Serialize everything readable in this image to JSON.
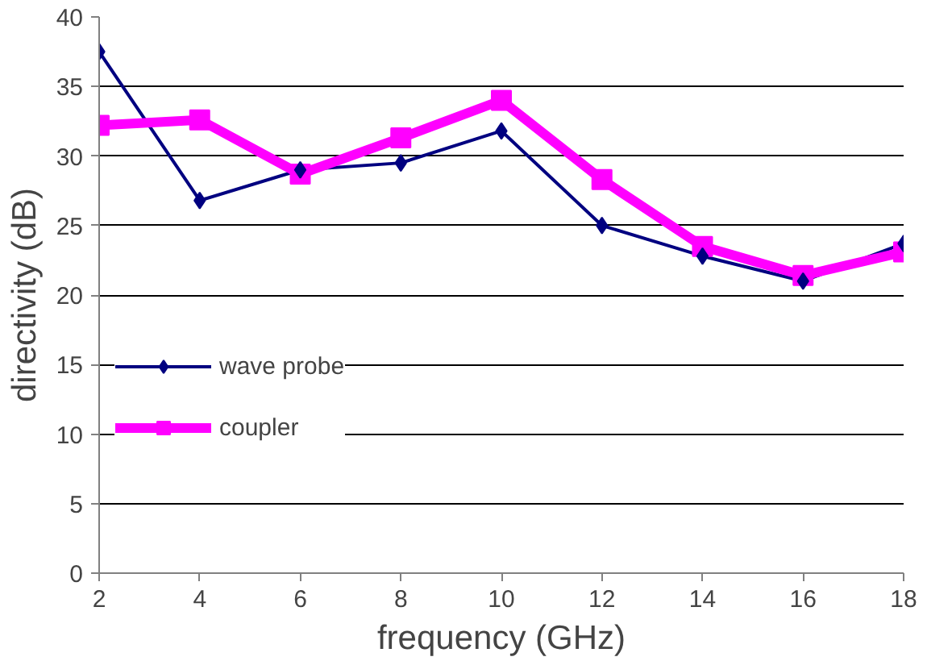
{
  "chart_data": {
    "type": "line",
    "xlabel": "frequency (GHz)",
    "ylabel": "directivity (dB)",
    "x": [
      2,
      4,
      6,
      8,
      10,
      12,
      14,
      16,
      18
    ],
    "xlim": [
      2,
      18
    ],
    "xticks": [
      2,
      4,
      6,
      8,
      10,
      12,
      14,
      16,
      18
    ],
    "ylim": [
      0,
      40
    ],
    "yticks": [
      0,
      5,
      10,
      15,
      20,
      25,
      30,
      35,
      40
    ],
    "grid": "y",
    "legend": "left",
    "line_style": "solid",
    "series": [
      {
        "name": "wave probe",
        "color": "#000080",
        "marker": "diamond",
        "values": [
          37.5,
          26.8,
          29.0,
          29.5,
          31.8,
          25.0,
          22.8,
          21.0,
          23.7
        ]
      },
      {
        "name": "coupler",
        "color": "#ff00ff",
        "marker": "square",
        "values": [
          32.2,
          32.6,
          28.7,
          31.3,
          34.0,
          28.3,
          23.5,
          21.4,
          23.1
        ]
      }
    ]
  }
}
